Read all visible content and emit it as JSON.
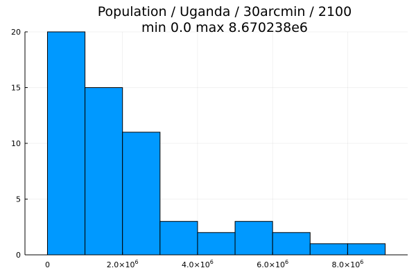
{
  "chart_data": {
    "type": "bar",
    "title_lines": [
      "Population / Uganda / 30arcmin / 2100",
      "min 0.0  max 8.670238e6"
    ],
    "bin_edges": [
      0,
      1000000,
      2000000,
      3000000,
      4000000,
      5000000,
      6000000,
      7000000,
      8000000,
      9000000
    ],
    "values": [
      20,
      15,
      11,
      3,
      2,
      3,
      2,
      1,
      1
    ],
    "xlim": [
      -600000,
      9600000
    ],
    "ylim": [
      0,
      20
    ],
    "x_ticks": [
      {
        "value": 0,
        "label": "0",
        "sup": ""
      },
      {
        "value": 2000000,
        "label": "2.0×10",
        "sup": "6"
      },
      {
        "value": 4000000,
        "label": "4.0×10",
        "sup": "6"
      },
      {
        "value": 6000000,
        "label": "6.0×10",
        "sup": "6"
      },
      {
        "value": 8000000,
        "label": "8.0×10",
        "sup": "6"
      }
    ],
    "y_ticks": [
      {
        "value": 0,
        "label": "0"
      },
      {
        "value": 5,
        "label": "5"
      },
      {
        "value": 10,
        "label": "10"
      },
      {
        "value": 15,
        "label": "15"
      },
      {
        "value": 20,
        "label": "20"
      }
    ],
    "grid": true,
    "legend": false,
    "bar_color": "#0099ff",
    "edge_color": "#000000"
  }
}
